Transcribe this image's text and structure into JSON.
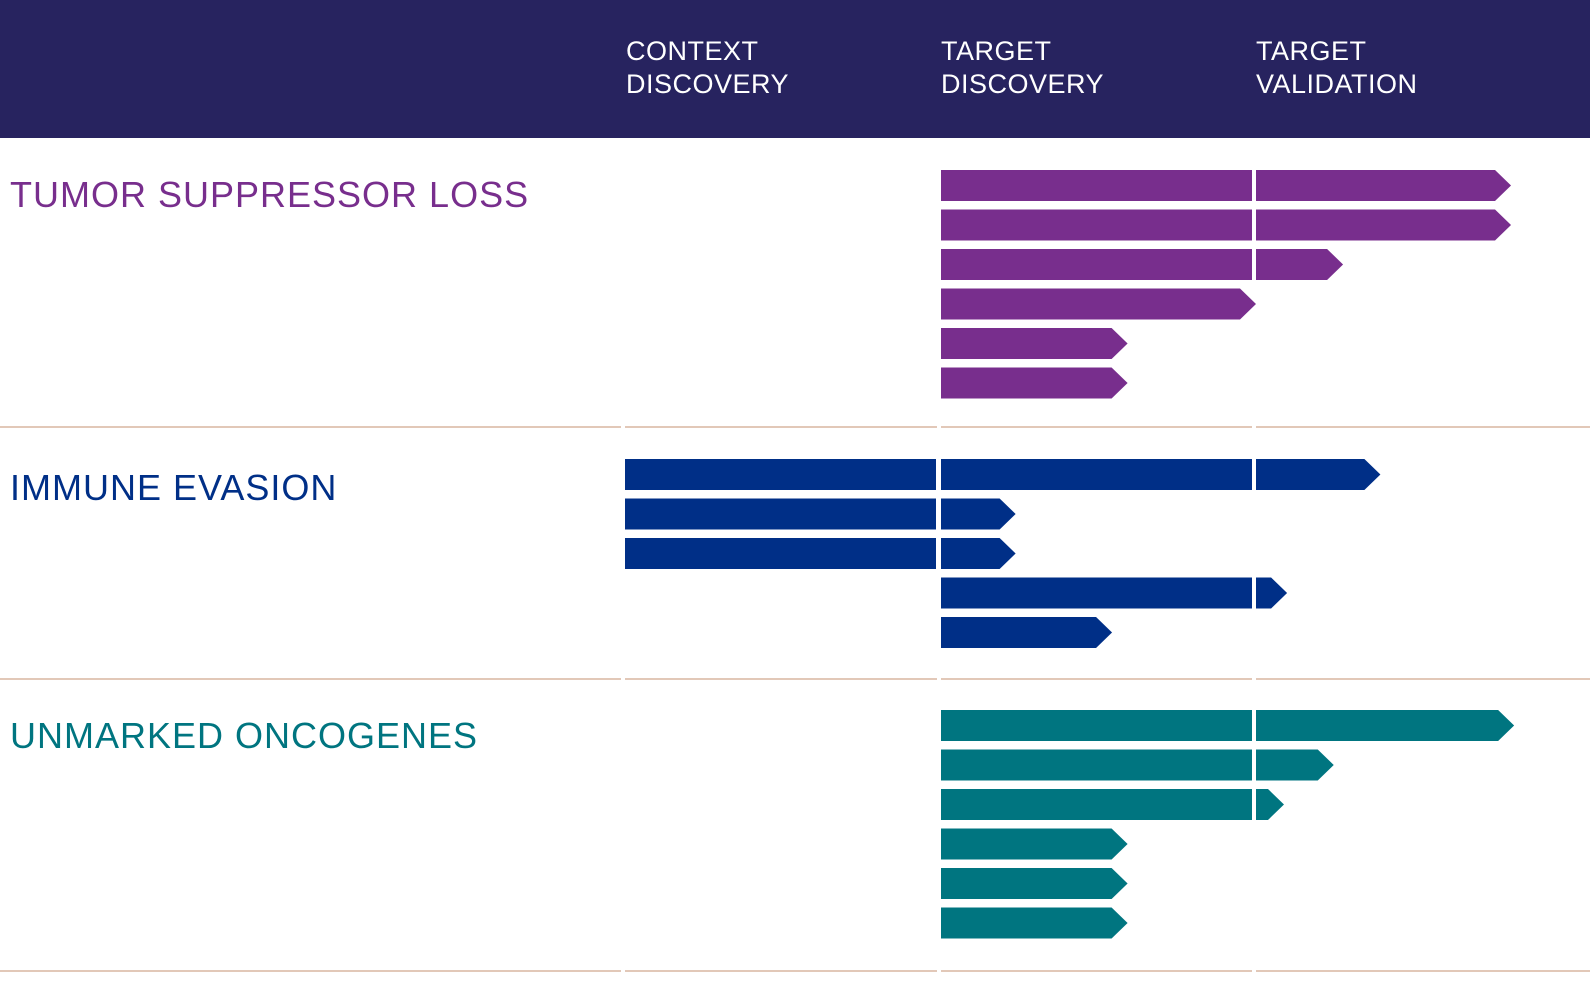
{
  "chart_data": {
    "type": "bar",
    "stages": [
      "CONTEXT\nDISCOVERY",
      "TARGET\nDISCOVERY",
      "TARGET\nVALIDATION"
    ],
    "header_color": "#27235f",
    "divider_color": "#e2c8b8",
    "sections": [
      {
        "title": "TUMOR SUPPRESSOR LOSS",
        "color": "#782e8d",
        "programs": [
          {
            "start": 1,
            "end": 2.82
          },
          {
            "start": 1,
            "end": 2.82
          },
          {
            "start": 1,
            "end": 2.28
          },
          {
            "start": 1,
            "end": 2.0
          },
          {
            "start": 1,
            "end": 1.6
          },
          {
            "start": 1,
            "end": 1.6
          }
        ]
      },
      {
        "title": "IMMUNE EVASION",
        "color": "#002f87",
        "programs": [
          {
            "start": 0,
            "end": 2.4
          },
          {
            "start": 0,
            "end": 1.24
          },
          {
            "start": 0,
            "end": 1.24
          },
          {
            "start": 1,
            "end": 2.1
          },
          {
            "start": 1,
            "end": 1.55
          }
        ]
      },
      {
        "title": "UNMARKED ONCOGENES",
        "color": "#007580",
        "programs": [
          {
            "start": 1,
            "end": 2.83
          },
          {
            "start": 1,
            "end": 2.25
          },
          {
            "start": 1,
            "end": 2.09
          },
          {
            "start": 1,
            "end": 1.6
          },
          {
            "start": 1,
            "end": 1.6
          },
          {
            "start": 1,
            "end": 1.6
          }
        ]
      }
    ]
  }
}
